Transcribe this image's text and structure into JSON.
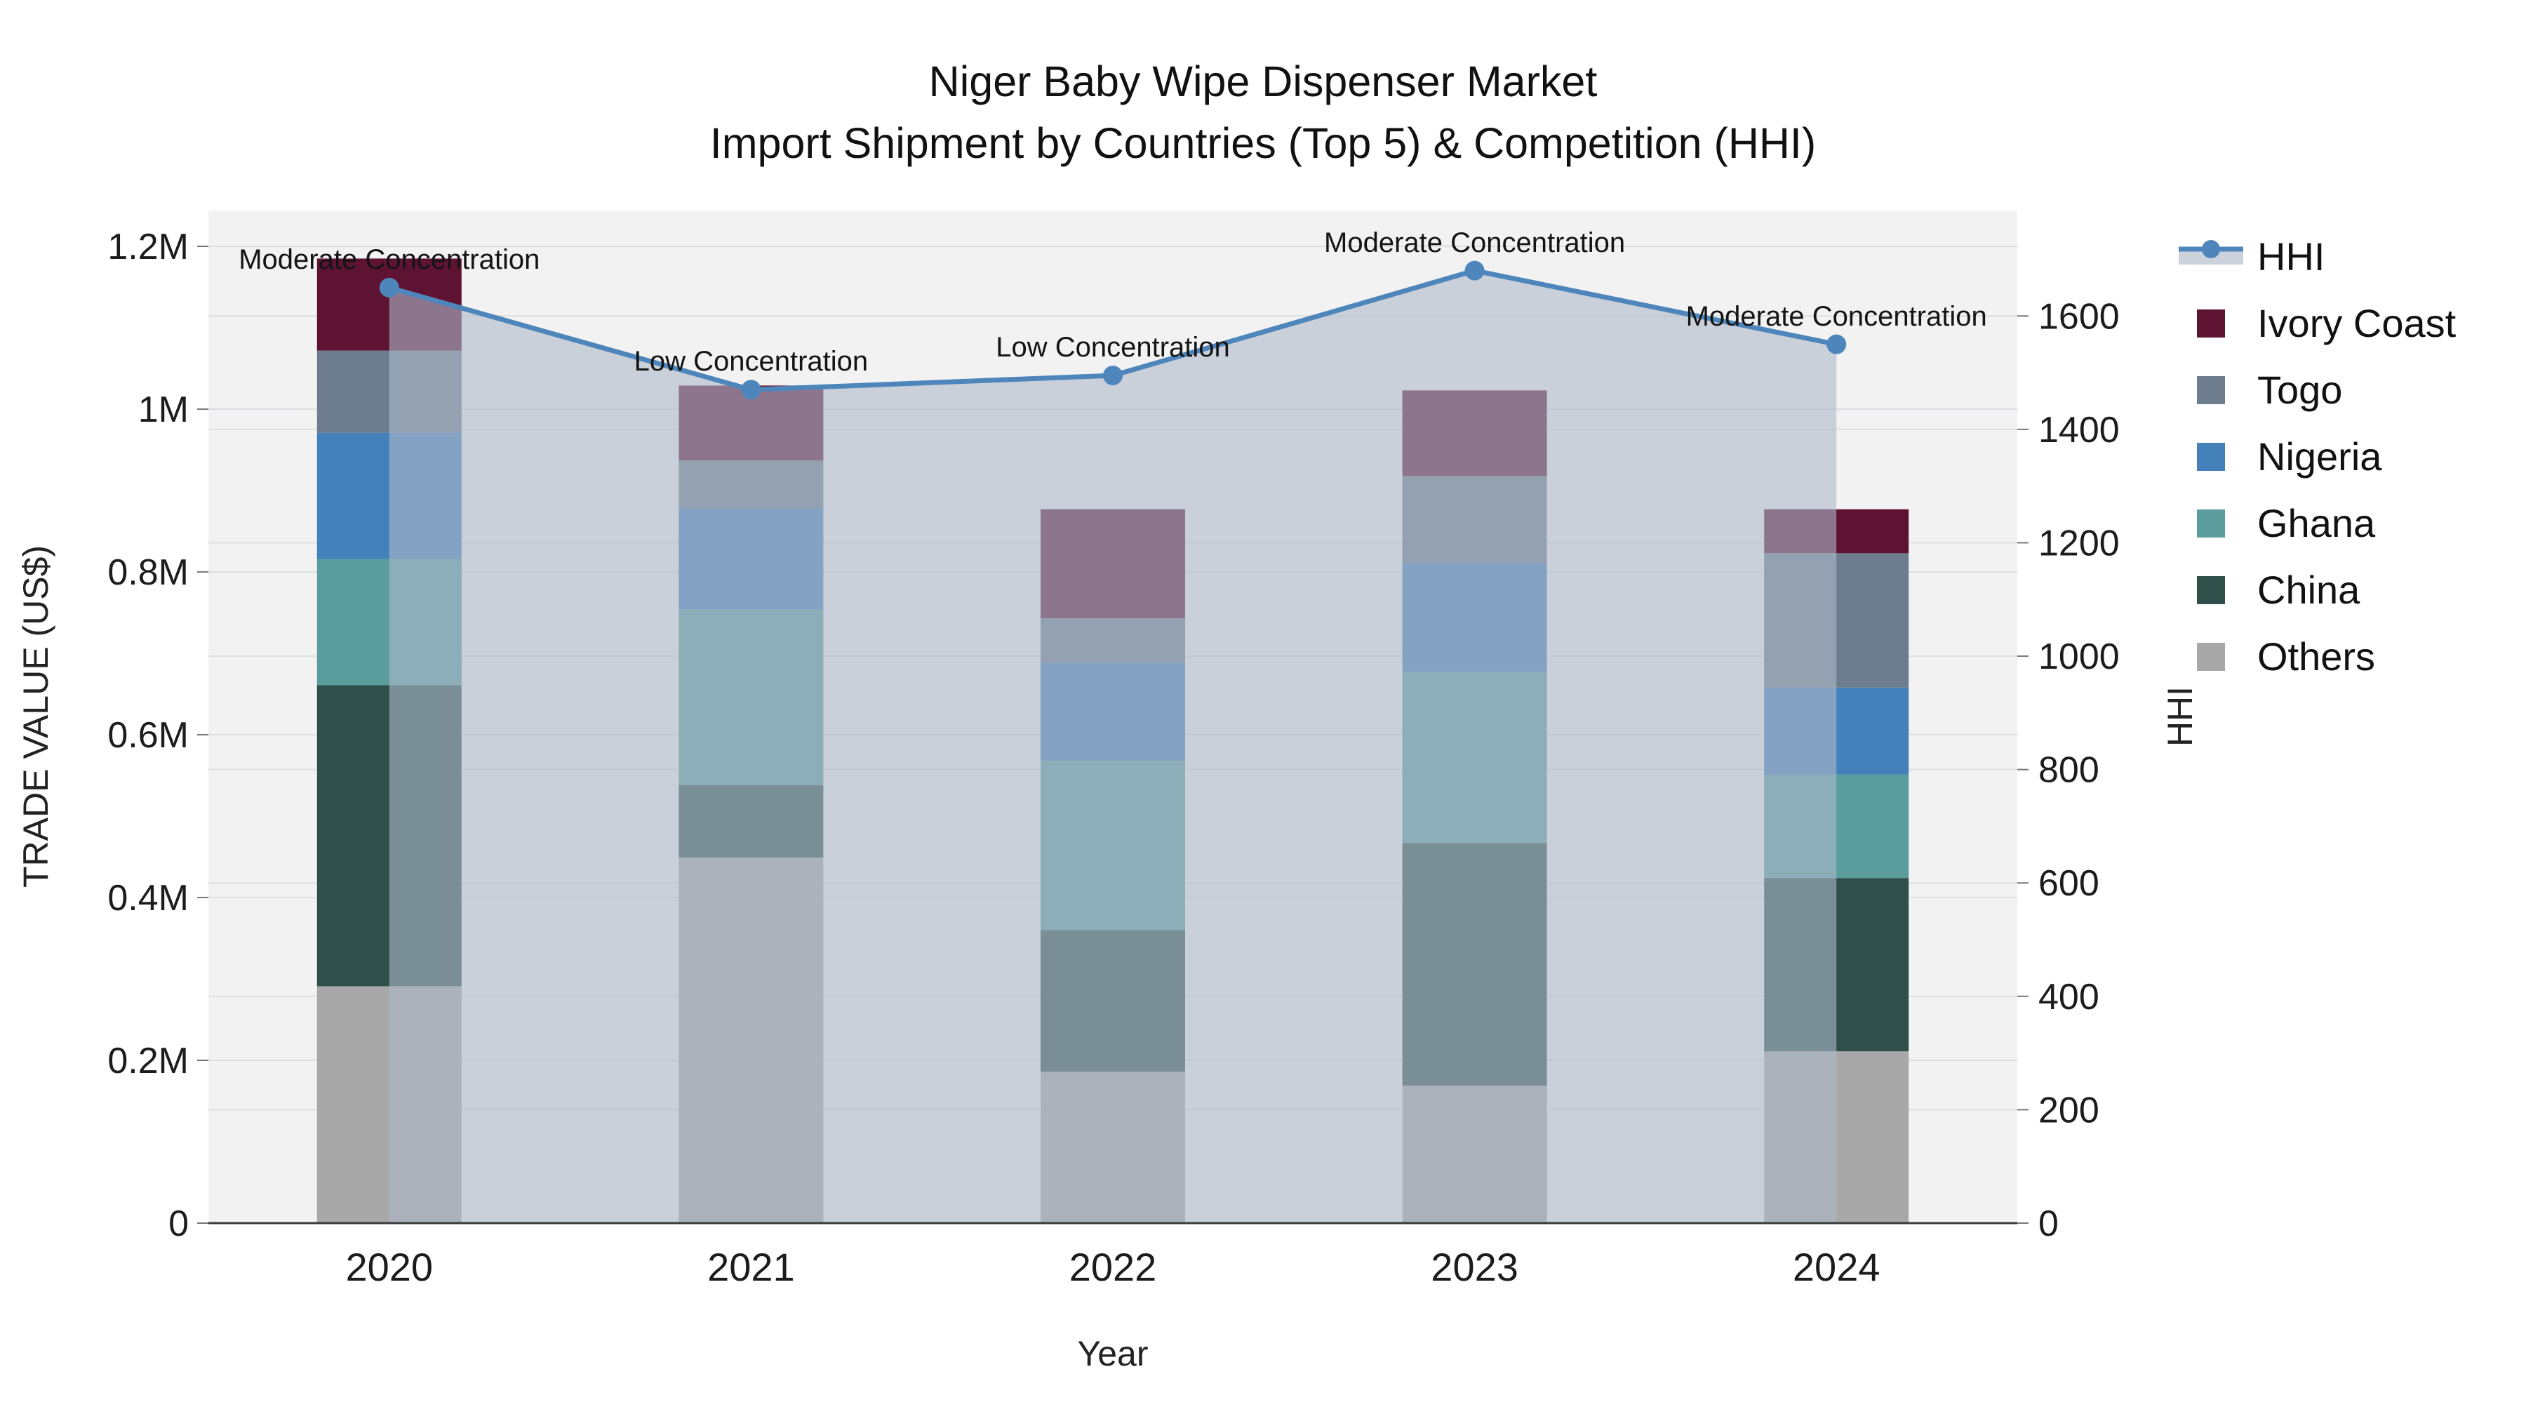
{
  "title": {
    "line1": "Niger Baby Wipe Dispenser Market",
    "line2": "Import Shipment by Countries (Top 5) & Competition (HHI)"
  },
  "axes": {
    "x_title": "Year",
    "y_left_title": "TRADE VALUE (US$)",
    "y_right_title": "HHI",
    "y_left_tick_labels": [
      "0",
      "0.2M",
      "0.4M",
      "0.6M",
      "0.8M",
      "1M",
      "1.2M"
    ],
    "y_left_tick_values": [
      0,
      200000,
      400000,
      600000,
      800000,
      1000000,
      1200000
    ],
    "y_left_range": [
      0,
      1244000
    ],
    "y_right_tick_labels": [
      "0",
      "200",
      "400",
      "600",
      "800",
      "1000",
      "1200",
      "1400",
      "1600"
    ],
    "y_right_tick_values": [
      0,
      200,
      400,
      600,
      800,
      1000,
      1200,
      1400,
      1600
    ],
    "y_right_range": [
      0,
      1786
    ]
  },
  "chart_data": {
    "type": "bar",
    "subtype": "stacked-bar-with-line",
    "categories": [
      "2020",
      "2021",
      "2022",
      "2023",
      "2024"
    ],
    "series": [
      {
        "name": "Others",
        "color": "#a8a8a8",
        "values": [
          291000,
          449000,
          186000,
          169000,
          211000
        ]
      },
      {
        "name": "China",
        "color": "#2f4f4a",
        "values": [
          370000,
          89000,
          174000,
          298000,
          213000
        ]
      },
      {
        "name": "Ghana",
        "color": "#5b9d9d",
        "values": [
          155000,
          216000,
          208000,
          210000,
          127000
        ]
      },
      {
        "name": "Nigeria",
        "color": "#4481bb",
        "values": [
          155000,
          124000,
          120000,
          134000,
          107000
        ]
      },
      {
        "name": "Togo",
        "color": "#6e7d8d",
        "values": [
          101000,
          59000,
          55000,
          107000,
          165000
        ]
      },
      {
        "name": "Ivory Coast",
        "color": "#5e1333",
        "values": [
          113000,
          92000,
          134000,
          105000,
          54000
        ]
      }
    ],
    "totals": [
      1185000,
      1029000,
      877000,
      1023000,
      877000
    ],
    "line_series": {
      "name": "HHI",
      "values": [
        1650,
        1470,
        1495,
        1680,
        1550
      ],
      "color": "#4e86bb",
      "area_fill_color": "#aeb9ca",
      "area_fill_opacity": 0.6
    },
    "annotations": [
      "Moderate Concentration",
      "Low Concentration",
      "Low Concentration",
      "Moderate Concentration",
      "Moderate Concentration"
    ],
    "title": "Niger Baby Wipe Dispenser Market — Import Shipment by Countries (Top 5) & Competition (HHI)",
    "xlabel": "Year",
    "ylabel_left": "TRADE VALUE (US$)",
    "ylabel_right": "HHI",
    "grid": true,
    "legend_position": "right",
    "plot_bg_color": "#f2f2f2",
    "grid_color": "#dcdee2",
    "axis_line_color": "#3a3a3a"
  },
  "legend": {
    "items": [
      {
        "label": "HHI",
        "type": "line",
        "color": "#4e86bb"
      },
      {
        "label": "Ivory Coast",
        "type": "square",
        "color": "#5e1333"
      },
      {
        "label": "Togo",
        "type": "square",
        "color": "#6e7d8d"
      },
      {
        "label": "Nigeria",
        "type": "square",
        "color": "#4481bb"
      },
      {
        "label": "Ghana",
        "type": "square",
        "color": "#5b9d9d"
      },
      {
        "label": "China",
        "type": "square",
        "color": "#2f4f4a"
      },
      {
        "label": "Others",
        "type": "square",
        "color": "#a8a8a8"
      }
    ]
  }
}
